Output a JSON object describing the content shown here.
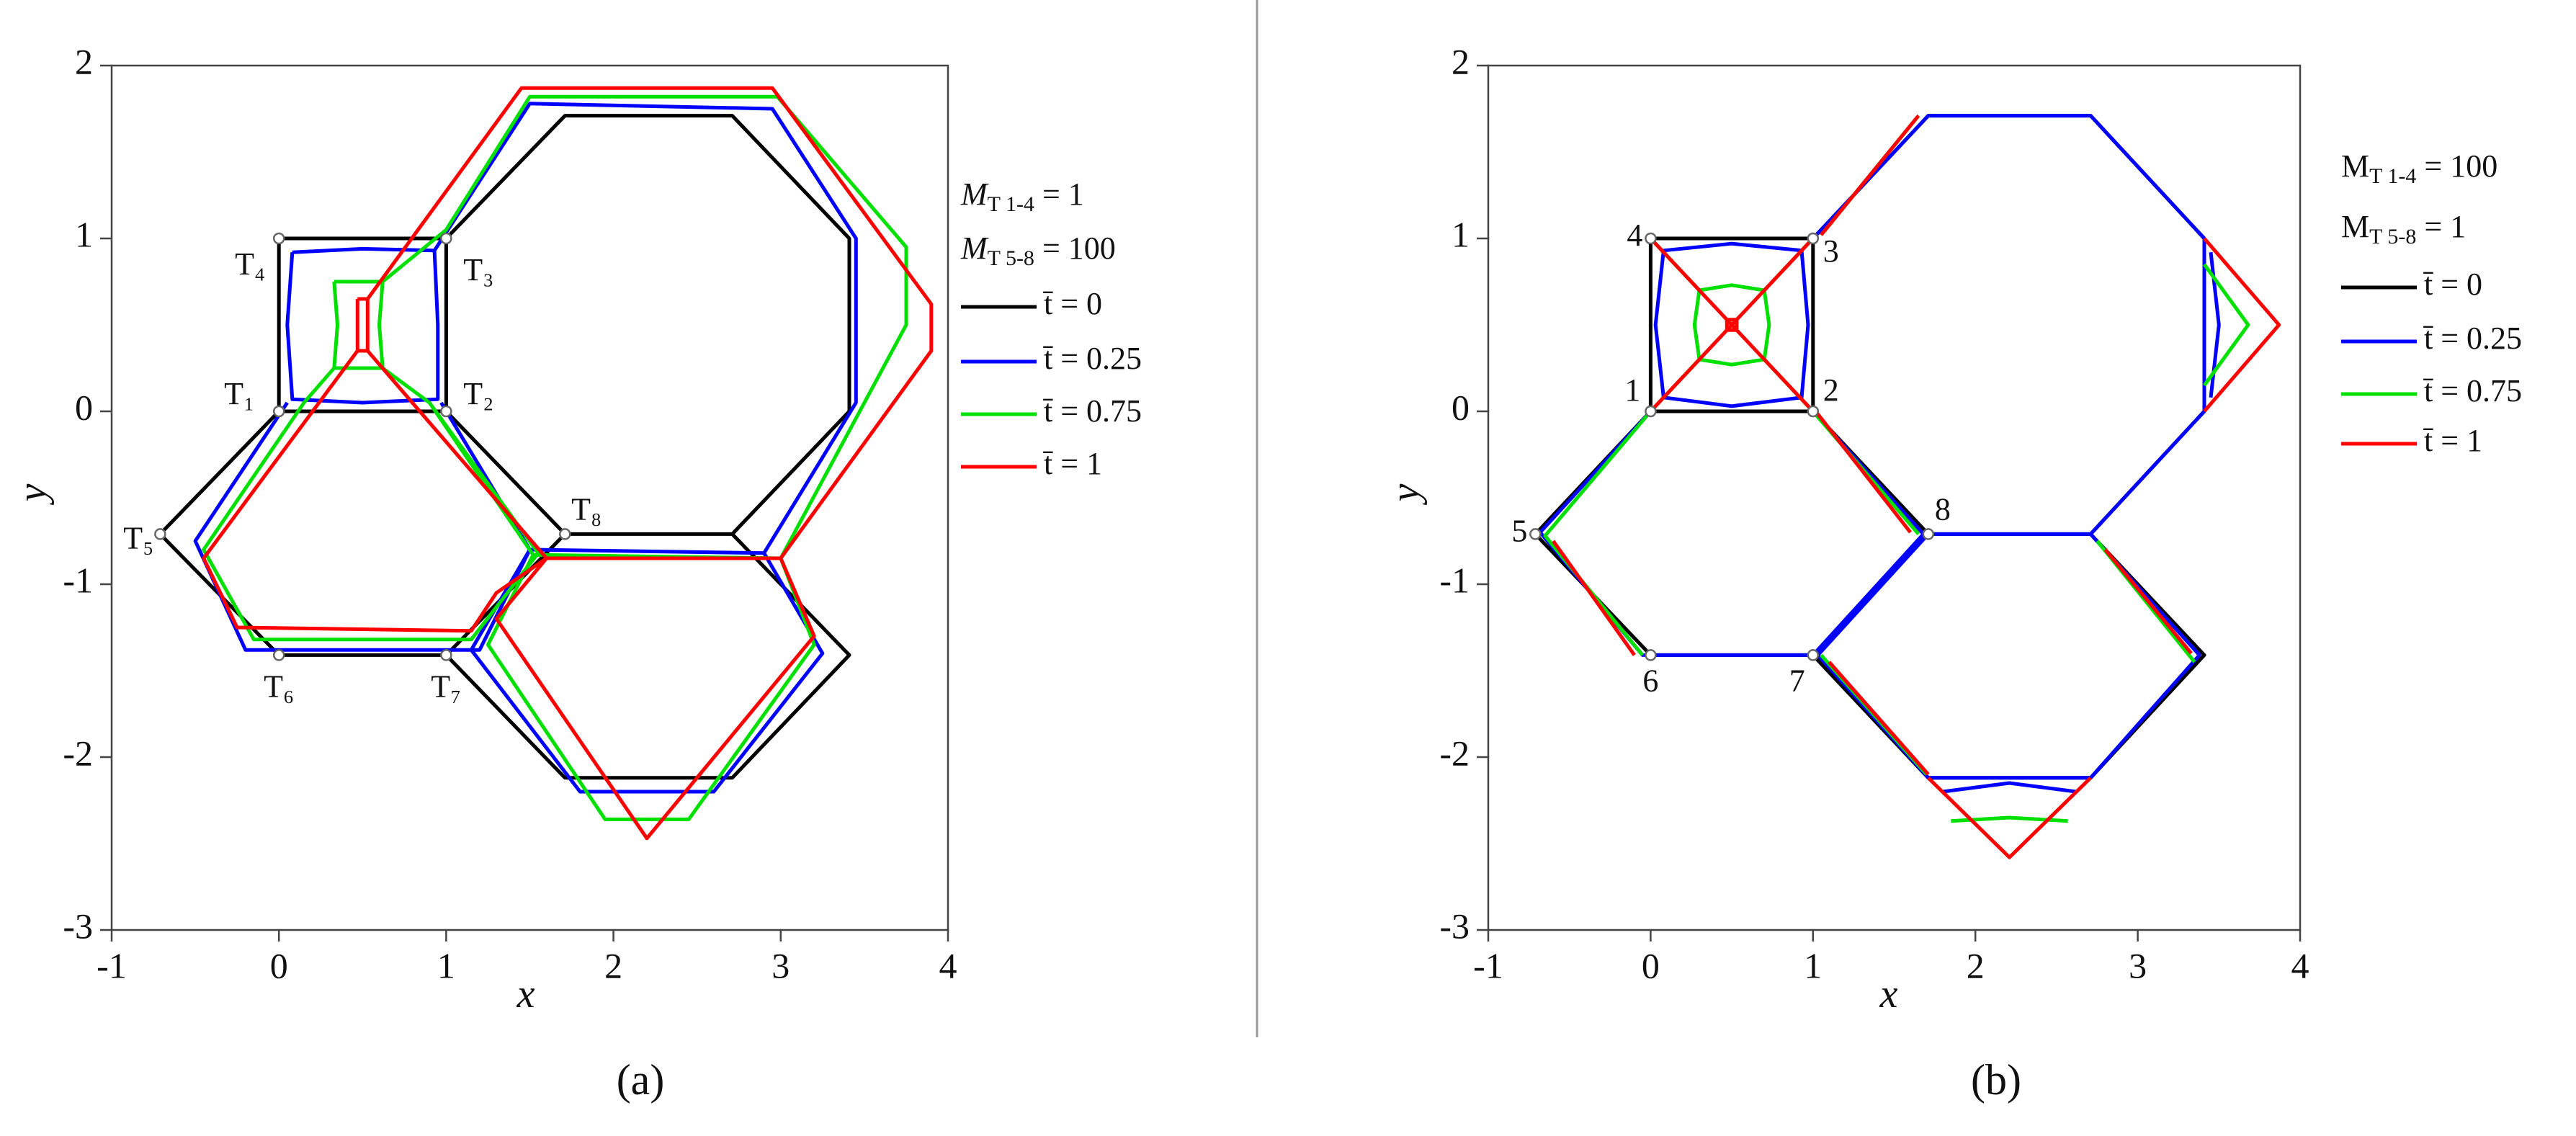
{
  "chart_data": [
    {
      "type": "line",
      "caption": "(a)",
      "xlabel": "x",
      "ylabel": "y",
      "xlim": [
        -1,
        4
      ],
      "ylim": [
        -3,
        2
      ],
      "xticks": [
        -1,
        0,
        1,
        2,
        3,
        4
      ],
      "yticks": [
        -3,
        -2,
        -1,
        0,
        1,
        2
      ],
      "note_italic": true,
      "notes": [
        {
          "main": "M",
          "sub": "T 1-4",
          "rest": " = 1"
        },
        {
          "main": "M",
          "sub": "T 5-8",
          "rest": " = 100"
        }
      ],
      "markers": [
        {
          "text": "T₁",
          "x": 0,
          "y": 0
        },
        {
          "text": "T₂",
          "x": 1,
          "y": 0
        },
        {
          "text": "T₃",
          "x": 1,
          "y": 1
        },
        {
          "text": "T₄",
          "x": 0,
          "y": 1
        },
        {
          "text": "T₅",
          "x": -0.71,
          "y": -0.71
        },
        {
          "text": "T₆",
          "x": 0,
          "y": -1.41
        },
        {
          "text": "T₇",
          "x": 1,
          "y": -1.41
        },
        {
          "text": "T₈",
          "x": 1.71,
          "y": -0.71
        }
      ],
      "series": [
        {
          "name": "t̄ = 0",
          "color": "#000000",
          "x": [
            0,
            1,
            1,
            0,
            0,
            null,
            0,
            -0.71,
            0,
            1,
            1.71,
            1,
            null,
            1,
            1.71,
            2.71,
            3.41,
            3.41,
            2.71,
            1.71,
            null,
            1.71,
            1,
            1.71,
            2.71,
            3.41,
            2.71
          ],
          "values": [
            0,
            0,
            1,
            1,
            0,
            null,
            0,
            -0.71,
            -1.41,
            -1.41,
            -0.71,
            0,
            null,
            1,
            1.71,
            1.71,
            1,
            0,
            -0.71,
            -0.71,
            null,
            -0.71,
            -1.41,
            -2.12,
            -2.12,
            -1.41,
            -0.71
          ]
        },
        {
          "name": "t̄ = 0.25",
          "color": "#0000ff",
          "x": [
            0.08,
            0.5,
            0.93,
            0.95,
            0.95,
            0.5,
            0.08,
            0.05,
            0.08,
            null,
            0.05,
            -0.5,
            -0.2,
            1.2,
            1.5,
            0.97,
            null,
            0.93,
            1.5,
            2.95,
            3.45,
            3.45,
            2.9,
            1.5,
            0.97,
            null,
            1.5,
            1.15,
            1.8,
            2.6,
            3.25,
            2.9
          ],
          "values": [
            0.92,
            0.94,
            0.93,
            0.5,
            0.07,
            0.05,
            0.07,
            0.5,
            0.92,
            null,
            0.05,
            -0.75,
            -1.38,
            -1.38,
            -0.8,
            0.05,
            null,
            0.93,
            1.78,
            1.75,
            1,
            0.05,
            -0.82,
            -0.8,
            0.05,
            null,
            -0.8,
            -1.38,
            -2.2,
            -2.2,
            -1.4,
            -0.82
          ]
        },
        {
          "name": "t̄ = 0.75",
          "color": "#00e000",
          "x": [
            0.33,
            0.62,
            0.6,
            0.62,
            0.33,
            0.35,
            0.33,
            null,
            0.33,
            0.15,
            -0.45,
            -0.15,
            1.15,
            1.55,
            0.9,
            0.62,
            null,
            0.62,
            1,
            1.5,
            2.98,
            3.75,
            3.75,
            3,
            1.52,
            0.9,
            null,
            1.52,
            1.25,
            1.95,
            2.45,
            3.2,
            3
          ],
          "values": [
            0.75,
            0.75,
            0.5,
            0.25,
            0.25,
            0.5,
            0.75,
            null,
            0.25,
            0.05,
            -0.8,
            -1.32,
            -1.32,
            -0.82,
            0.05,
            0.25,
            null,
            0.75,
            1.05,
            1.82,
            1.82,
            0.95,
            0.5,
            -0.85,
            -0.83,
            0.05,
            null,
            -0.83,
            -1.35,
            -2.36,
            -2.36,
            -1.35,
            -0.85
          ]
        },
        {
          "name": "t̄ = 1",
          "color": "#ff0000",
          "x": [
            0.47,
            0.53,
            0.53,
            0.47,
            0.47,
            null,
            0.47,
            -0.45,
            -0.25,
            1.15,
            1.3,
            1.6,
            0.53,
            null,
            0.53,
            1.45,
            2.95,
            3.9,
            3.9,
            3,
            1.6,
            null,
            1.6,
            1.3,
            2.2,
            3.2,
            3
          ],
          "values": [
            0.65,
            0.65,
            0.35,
            0.35,
            0.65,
            null,
            0.35,
            -0.85,
            -1.25,
            -1.27,
            -1.05,
            -0.85,
            0.35,
            null,
            0.65,
            1.87,
            1.87,
            0.62,
            0.35,
            -0.85,
            -0.85,
            null,
            -0.85,
            -1.2,
            -2.47,
            -1.3,
            -0.85
          ]
        }
      ]
    },
    {
      "type": "line",
      "caption": "(b)",
      "xlabel": "x",
      "ylabel": "y",
      "xlim": [
        -1,
        4
      ],
      "ylim": [
        -3,
        2
      ],
      "xticks": [
        -1,
        0,
        1,
        2,
        3,
        4
      ],
      "yticks": [
        -3,
        -2,
        -1,
        0,
        1,
        2
      ],
      "note_italic": false,
      "notes": [
        {
          "main": "M",
          "sub": "T 1-4",
          "rest": " = 100"
        },
        {
          "main": "M",
          "sub": "T 5-8",
          "rest": " = 1"
        }
      ],
      "markers": [
        {
          "text": "1",
          "x": 0,
          "y": 0
        },
        {
          "text": "2",
          "x": 1,
          "y": 0
        },
        {
          "text": "3",
          "x": 1,
          "y": 1
        },
        {
          "text": "4",
          "x": 0,
          "y": 1
        },
        {
          "text": "5",
          "x": -0.71,
          "y": -0.71
        },
        {
          "text": "6",
          "x": 0,
          "y": -1.41
        },
        {
          "text": "7",
          "x": 1,
          "y": -1.41
        },
        {
          "text": "8",
          "x": 1.71,
          "y": -0.71
        }
      ],
      "series": [
        {
          "name": "t̄ = 0",
          "color": "#000000",
          "x": [
            0,
            1,
            1,
            0,
            0,
            null,
            0,
            -0.71,
            0,
            1,
            1.71,
            1,
            null,
            1,
            1.71,
            2.71,
            3.41,
            3.41,
            2.71,
            1.71,
            null,
            1.71,
            1,
            1.71,
            2.71,
            3.41,
            2.71
          ],
          "values": [
            0,
            0,
            1,
            1,
            0,
            null,
            0,
            -0.71,
            -1.41,
            -1.41,
            -0.71,
            0,
            null,
            1,
            1.71,
            1.71,
            1,
            0,
            -0.71,
            -0.71,
            null,
            -0.71,
            -1.41,
            -2.12,
            -2.12,
            -1.41,
            -0.71
          ]
        },
        {
          "name": "t̄ = 0.25",
          "color": "#0000ff",
          "x": [
            0.08,
            0.5,
            0.93,
            0.97,
            0.93,
            0.5,
            0.08,
            0.03,
            0.08,
            null,
            0,
            -0.68,
            -0.05,
            1,
            1.68,
            1,
            null,
            1,
            1.71,
            2.71,
            3.41,
            3.41,
            2.71,
            1.71,
            null,
            3.45,
            3.5,
            3.45,
            null,
            1.71,
            1.03,
            1.71,
            2.71,
            3.38,
            2.71,
            null,
            1.8,
            2.21,
            2.62
          ],
          "values": [
            0.08,
            0.03,
            0.08,
            0.5,
            0.93,
            0.97,
            0.93,
            0.5,
            0.08,
            null,
            0,
            -0.7,
            -1.41,
            -1.41,
            -0.71,
            0,
            null,
            1,
            1.71,
            1.71,
            1,
            0,
            -0.71,
            -0.71,
            null,
            0.92,
            0.5,
            0.08,
            null,
            -0.71,
            -1.41,
            -2.12,
            -2.12,
            -1.41,
            -0.71,
            null,
            -2.2,
            -2.15,
            -2.2
          ]
        },
        {
          "name": "t̄ = 0.75",
          "color": "#00e000",
          "x": [
            0.3,
            0.5,
            0.7,
            0.73,
            0.7,
            0.5,
            0.3,
            0.27,
            0.3,
            null,
            0,
            0.3,
            null,
            1,
            0.7,
            null,
            1,
            0.7,
            null,
            0,
            0.3,
            null,
            0,
            -0.65,
            -0.05,
            null,
            1,
            1.65,
            null,
            1.05,
            1.65,
            null,
            3.41,
            3.68,
            3.41,
            null,
            1.05,
            1.7,
            null,
            3.35,
            2.75,
            null,
            1.85,
            2.21,
            2.57
          ],
          "values": [
            0.3,
            0.27,
            0.3,
            0.5,
            0.7,
            0.73,
            0.7,
            0.5,
            0.3,
            null,
            0,
            0.3,
            null,
            0,
            0.3,
            null,
            1,
            0.7,
            null,
            1,
            0.7,
            null,
            0,
            -0.72,
            -1.41,
            null,
            0,
            -0.71,
            null,
            1.02,
            1.71,
            null,
            0.85,
            0.5,
            0.15,
            null,
            -1.41,
            -2.1,
            null,
            -1.45,
            -0.75,
            null,
            -2.37,
            -2.35,
            -2.37
          ]
        },
        {
          "name": "t̄ = 1",
          "color": "#ff0000",
          "x": [
            0,
            1,
            null,
            1,
            0,
            null,
            0.47,
            0.53,
            0.53,
            0.47,
            0.47,
            null,
            3.41,
            3.87,
            3.41,
            null,
            1.71,
            2.21,
            2.71,
            null,
            -0.6,
            -0.1,
            null,
            1.6,
            1,
            null,
            1.1,
            1.71,
            null,
            3.33,
            2.8,
            null,
            1.65,
            1.05
          ],
          "values": [
            0,
            1,
            null,
            0,
            1,
            null,
            0.47,
            0.47,
            0.53,
            0.53,
            0.47,
            null,
            1,
            0.5,
            0,
            null,
            -2.12,
            -2.58,
            -2.12,
            null,
            -0.75,
            -1.41,
            null,
            -0.7,
            0.02,
            null,
            -1.45,
            -2.1,
            null,
            -1.4,
            -0.8,
            null,
            1.71,
            1.02
          ]
        }
      ]
    }
  ]
}
